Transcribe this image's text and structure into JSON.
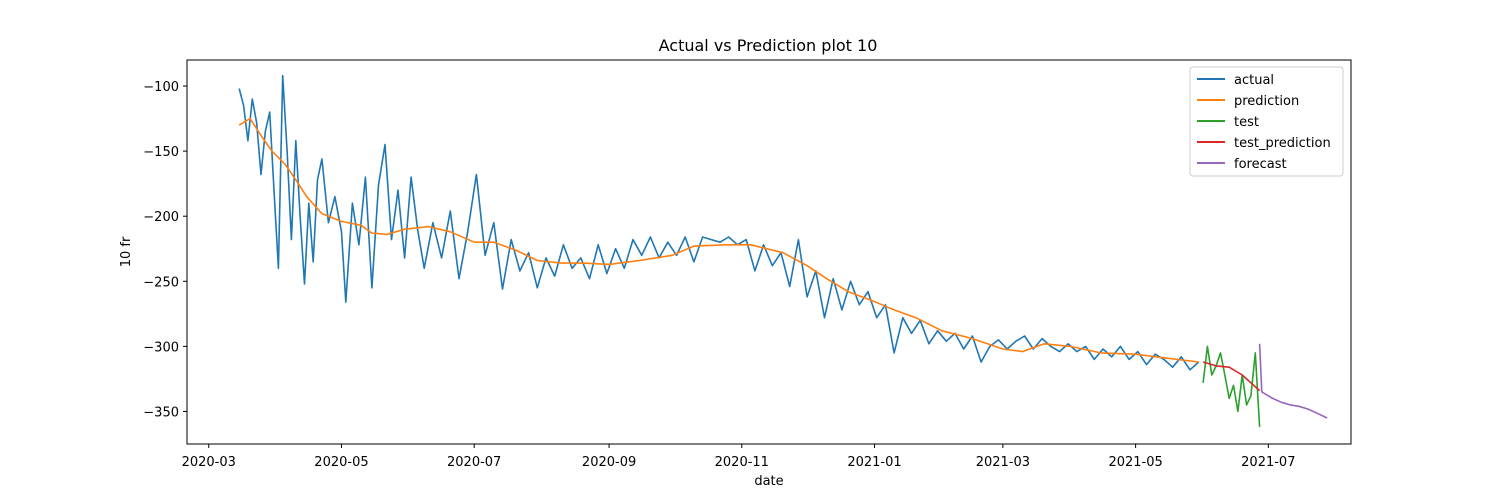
{
  "chart_data": {
    "type": "line",
    "title": "Actual vs Prediction plot 10",
    "xlabel": "date",
    "ylabel": "10 fr",
    "x_axis_type": "date",
    "xlim": [
      "2020-02-20",
      "2021-08-08"
    ],
    "ylim": [
      -375,
      -80
    ],
    "x_ticks": [
      "2020-03",
      "2020-05",
      "2020-07",
      "2020-09",
      "2020-11",
      "2021-01",
      "2021-03",
      "2021-05",
      "2021-07"
    ],
    "y_ticks": [
      -100,
      -150,
      -200,
      -250,
      -300,
      -350
    ],
    "grid": false,
    "legend_position": "top-right",
    "series": [
      {
        "name": "actual",
        "color": "#1f77b4",
        "points": [
          [
            "2020-03-15",
            -102
          ],
          [
            "2020-03-17",
            -115
          ],
          [
            "2020-03-19",
            -142
          ],
          [
            "2020-03-21",
            -110
          ],
          [
            "2020-03-23",
            -128
          ],
          [
            "2020-03-25",
            -168
          ],
          [
            "2020-03-27",
            -135
          ],
          [
            "2020-03-29",
            -120
          ],
          [
            "2020-03-31",
            -180
          ],
          [
            "2020-04-02",
            -240
          ],
          [
            "2020-04-04",
            -92
          ],
          [
            "2020-04-06",
            -150
          ],
          [
            "2020-04-08",
            -218
          ],
          [
            "2020-04-10",
            -142
          ],
          [
            "2020-04-12",
            -200
          ],
          [
            "2020-04-14",
            -252
          ],
          [
            "2020-04-16",
            -190
          ],
          [
            "2020-04-18",
            -235
          ],
          [
            "2020-04-20",
            -172
          ],
          [
            "2020-04-22",
            -156
          ],
          [
            "2020-04-25",
            -205
          ],
          [
            "2020-04-28",
            -185
          ],
          [
            "2020-05-01",
            -212
          ],
          [
            "2020-05-03",
            -266
          ],
          [
            "2020-05-06",
            -190
          ],
          [
            "2020-05-09",
            -222
          ],
          [
            "2020-05-12",
            -170
          ],
          [
            "2020-05-15",
            -255
          ],
          [
            "2020-05-18",
            -176
          ],
          [
            "2020-05-21",
            -145
          ],
          [
            "2020-05-24",
            -218
          ],
          [
            "2020-05-27",
            -180
          ],
          [
            "2020-05-30",
            -232
          ],
          [
            "2020-06-02",
            -170
          ],
          [
            "2020-06-05",
            -210
          ],
          [
            "2020-06-08",
            -240
          ],
          [
            "2020-06-12",
            -205
          ],
          [
            "2020-06-16",
            -232
          ],
          [
            "2020-06-20",
            -196
          ],
          [
            "2020-06-24",
            -248
          ],
          [
            "2020-06-28",
            -212
          ],
          [
            "2020-07-02",
            -168
          ],
          [
            "2020-07-06",
            -230
          ],
          [
            "2020-07-10",
            -205
          ],
          [
            "2020-07-14",
            -256
          ],
          [
            "2020-07-18",
            -218
          ],
          [
            "2020-07-22",
            -242
          ],
          [
            "2020-07-26",
            -228
          ],
          [
            "2020-07-30",
            -255
          ],
          [
            "2020-08-03",
            -232
          ],
          [
            "2020-08-07",
            -246
          ],
          [
            "2020-08-11",
            -222
          ],
          [
            "2020-08-15",
            -240
          ],
          [
            "2020-08-19",
            -232
          ],
          [
            "2020-08-23",
            -248
          ],
          [
            "2020-08-27",
            -222
          ],
          [
            "2020-08-31",
            -244
          ],
          [
            "2020-09-04",
            -225
          ],
          [
            "2020-09-08",
            -240
          ],
          [
            "2020-09-12",
            -218
          ],
          [
            "2020-09-16",
            -230
          ],
          [
            "2020-09-20",
            -216
          ],
          [
            "2020-09-24",
            -232
          ],
          [
            "2020-09-28",
            -220
          ],
          [
            "2020-10-02",
            -230
          ],
          [
            "2020-10-06",
            -216
          ],
          [
            "2020-10-10",
            -235
          ],
          [
            "2020-10-14",
            -216
          ],
          [
            "2020-10-18",
            -218
          ],
          [
            "2020-10-22",
            -220
          ],
          [
            "2020-10-26",
            -216
          ],
          [
            "2020-10-30",
            -222
          ],
          [
            "2020-11-03",
            -218
          ],
          [
            "2020-11-07",
            -242
          ],
          [
            "2020-11-11",
            -222
          ],
          [
            "2020-11-15",
            -238
          ],
          [
            "2020-11-19",
            -228
          ],
          [
            "2020-11-23",
            -254
          ],
          [
            "2020-11-27",
            -218
          ],
          [
            "2020-12-01",
            -262
          ],
          [
            "2020-12-05",
            -242
          ],
          [
            "2020-12-09",
            -278
          ],
          [
            "2020-12-13",
            -248
          ],
          [
            "2020-12-17",
            -272
          ],
          [
            "2020-12-21",
            -250
          ],
          [
            "2020-12-25",
            -268
          ],
          [
            "2020-12-29",
            -258
          ],
          [
            "2021-01-02",
            -278
          ],
          [
            "2021-01-06",
            -268
          ],
          [
            "2021-01-10",
            -305
          ],
          [
            "2021-01-14",
            -278
          ],
          [
            "2021-01-18",
            -290
          ],
          [
            "2021-01-22",
            -280
          ],
          [
            "2021-01-26",
            -298
          ],
          [
            "2021-01-30",
            -288
          ],
          [
            "2021-02-03",
            -296
          ],
          [
            "2021-02-07",
            -290
          ],
          [
            "2021-02-11",
            -302
          ],
          [
            "2021-02-15",
            -292
          ],
          [
            "2021-02-19",
            -312
          ],
          [
            "2021-02-23",
            -300
          ],
          [
            "2021-02-27",
            -295
          ],
          [
            "2021-03-03",
            -302
          ],
          [
            "2021-03-07",
            -296
          ],
          [
            "2021-03-11",
            -292
          ],
          [
            "2021-03-15",
            -302
          ],
          [
            "2021-03-19",
            -294
          ],
          [
            "2021-03-23",
            -300
          ],
          [
            "2021-03-27",
            -304
          ],
          [
            "2021-03-31",
            -298
          ],
          [
            "2021-04-04",
            -304
          ],
          [
            "2021-04-08",
            -300
          ],
          [
            "2021-04-12",
            -310
          ],
          [
            "2021-04-16",
            -302
          ],
          [
            "2021-04-20",
            -308
          ],
          [
            "2021-04-24",
            -300
          ],
          [
            "2021-04-28",
            -310
          ],
          [
            "2021-05-02",
            -304
          ],
          [
            "2021-05-06",
            -314
          ],
          [
            "2021-05-10",
            -306
          ],
          [
            "2021-05-14",
            -310
          ],
          [
            "2021-05-18",
            -316
          ],
          [
            "2021-05-22",
            -308
          ],
          [
            "2021-05-26",
            -318
          ],
          [
            "2021-05-30",
            -312
          ]
        ]
      },
      {
        "name": "prediction",
        "color": "#ff7f0e",
        "points": [
          [
            "2020-03-15",
            -130
          ],
          [
            "2020-03-20",
            -125
          ],
          [
            "2020-03-25",
            -138
          ],
          [
            "2020-03-30",
            -150
          ],
          [
            "2020-04-05",
            -160
          ],
          [
            "2020-04-10",
            -172
          ],
          [
            "2020-04-15",
            -185
          ],
          [
            "2020-04-22",
            -198
          ],
          [
            "2020-05-01",
            -204
          ],
          [
            "2020-05-10",
            -207
          ],
          [
            "2020-05-15",
            -213
          ],
          [
            "2020-05-22",
            -214
          ],
          [
            "2020-05-30",
            -210
          ],
          [
            "2020-06-10",
            -208
          ],
          [
            "2020-06-20",
            -212
          ],
          [
            "2020-07-01",
            -220
          ],
          [
            "2020-07-10",
            -220
          ],
          [
            "2020-07-20",
            -226
          ],
          [
            "2020-07-30",
            -234
          ],
          [
            "2020-08-10",
            -236
          ],
          [
            "2020-08-20",
            -236
          ],
          [
            "2020-09-01",
            -237
          ],
          [
            "2020-09-15",
            -234
          ],
          [
            "2020-09-30",
            -230
          ],
          [
            "2020-10-10",
            -223
          ],
          [
            "2020-10-25",
            -222
          ],
          [
            "2020-11-05",
            -222
          ],
          [
            "2020-11-20",
            -228
          ],
          [
            "2020-12-01",
            -238
          ],
          [
            "2020-12-10",
            -248
          ],
          [
            "2020-12-20",
            -258
          ],
          [
            "2020-12-31",
            -265
          ],
          [
            "2021-01-10",
            -272
          ],
          [
            "2021-01-20",
            -278
          ],
          [
            "2021-02-01",
            -288
          ],
          [
            "2021-02-15",
            -294
          ],
          [
            "2021-03-01",
            -302
          ],
          [
            "2021-03-10",
            -304
          ],
          [
            "2021-03-20",
            -298
          ],
          [
            "2021-04-01",
            -300
          ],
          [
            "2021-04-15",
            -305
          ],
          [
            "2021-05-01",
            -306
          ],
          [
            "2021-05-15",
            -309
          ],
          [
            "2021-05-30",
            -312
          ]
        ]
      },
      {
        "name": "test",
        "color": "#2ca02c",
        "points": [
          [
            "2021-06-01",
            -328
          ],
          [
            "2021-06-03",
            -300
          ],
          [
            "2021-06-05",
            -322
          ],
          [
            "2021-06-07",
            -315
          ],
          [
            "2021-06-09",
            -305
          ],
          [
            "2021-06-11",
            -322
          ],
          [
            "2021-06-13",
            -340
          ],
          [
            "2021-06-15",
            -330
          ],
          [
            "2021-06-17",
            -350
          ],
          [
            "2021-06-19",
            -322
          ],
          [
            "2021-06-21",
            -345
          ],
          [
            "2021-06-23",
            -338
          ],
          [
            "2021-06-25",
            -305
          ],
          [
            "2021-06-27",
            -362
          ]
        ]
      },
      {
        "name": "test_prediction",
        "color": "#d62728",
        "points": [
          [
            "2021-06-01",
            -312
          ],
          [
            "2021-06-07",
            -315
          ],
          [
            "2021-06-13",
            -316
          ],
          [
            "2021-06-19",
            -322
          ],
          [
            "2021-06-23",
            -328
          ],
          [
            "2021-06-27",
            -334
          ]
        ]
      },
      {
        "name": "forecast",
        "color": "#9467bd",
        "points": [
          [
            "2021-06-27",
            -298
          ],
          [
            "2021-06-28",
            -335
          ],
          [
            "2021-07-03",
            -340
          ],
          [
            "2021-07-07",
            -343
          ],
          [
            "2021-07-11",
            -345
          ],
          [
            "2021-07-15",
            -346
          ],
          [
            "2021-07-19",
            -348
          ],
          [
            "2021-07-23",
            -351
          ],
          [
            "2021-07-28",
            -355
          ]
        ]
      }
    ]
  }
}
